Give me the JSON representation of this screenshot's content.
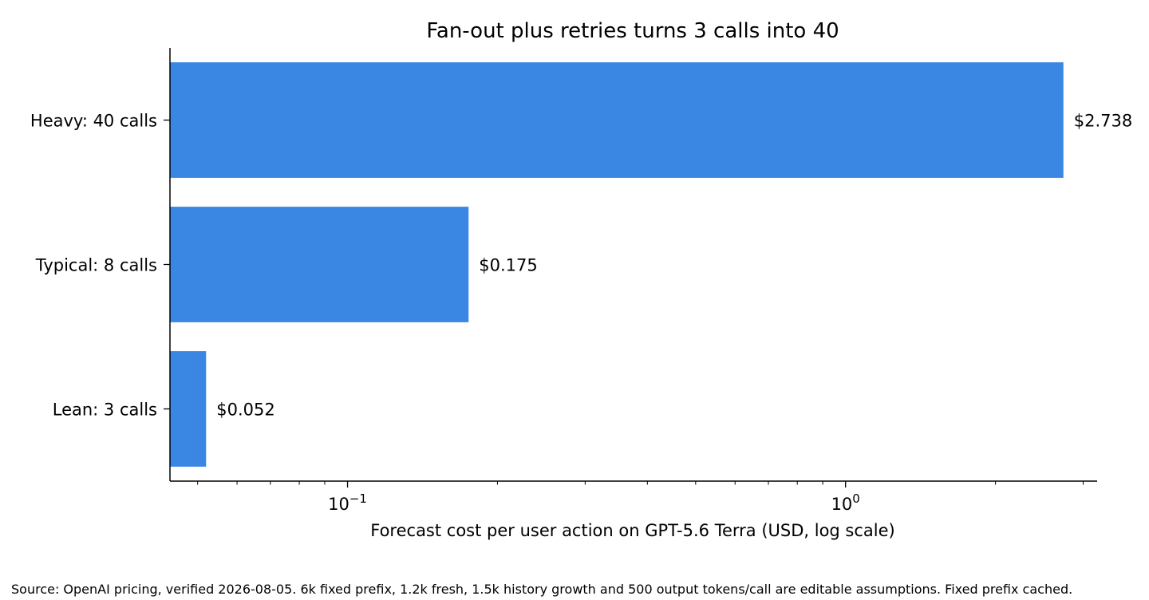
{
  "chart_data": {
    "type": "bar",
    "orientation": "horizontal",
    "title": "Fan-out plus retries turns 3 calls into 40",
    "xlabel": "Forecast cost per user action on GPT-5.6 Terra (USD, log scale)",
    "ylabel": "",
    "xscale": "log",
    "xlim": [
      0.044,
      3.2
    ],
    "categories": [
      "Heavy: 40 calls",
      "Typical: 8 calls",
      "Lean: 3 calls"
    ],
    "values": [
      2.738,
      0.175,
      0.052
    ],
    "data_labels": [
      "$2.738",
      "$0.175",
      "$0.052"
    ],
    "x_tick_labels": [
      {
        "value": 0.1,
        "base": "10",
        "exponent": "−1"
      },
      {
        "value": 1,
        "base": "10",
        "exponent": "0"
      }
    ],
    "bar_color": "#3A87E3",
    "grid": false,
    "legend": "none"
  },
  "footnote": "Source: OpenAI pricing, verified 2026-08-05. 6k fixed prefix, 1.2k fresh, 1.5k history growth and 500 output tokens/call are editable assumptions. Fixed prefix cached."
}
